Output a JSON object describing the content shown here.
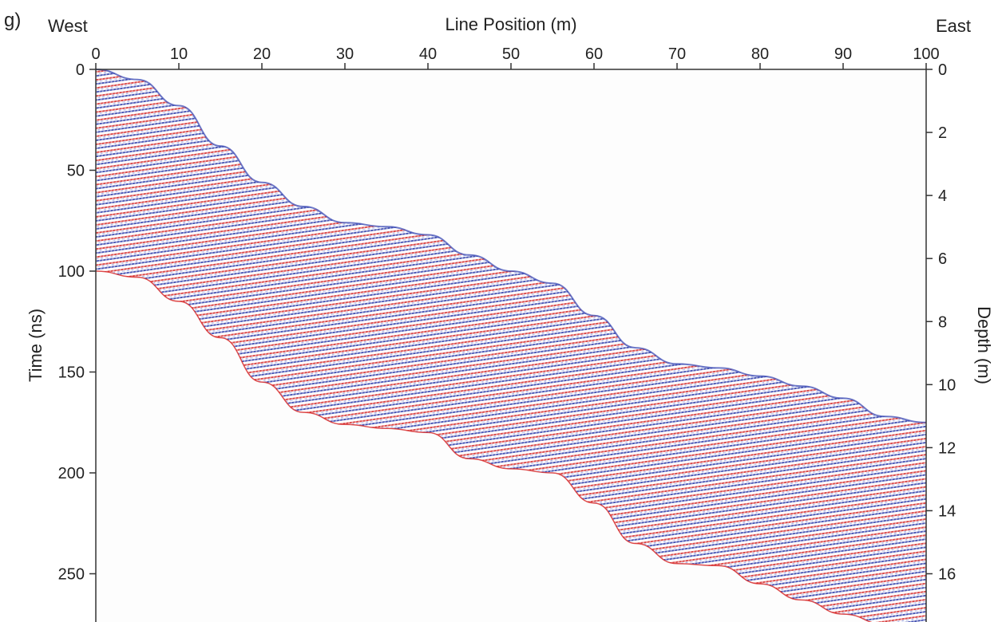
{
  "chart_data": {
    "type": "heatmap",
    "panel_label": "g)",
    "title": "",
    "top_left_label": "West",
    "top_right_label": "East",
    "xlabel": "Line Position (m)",
    "ylabel": "Time (ns)",
    "y2label": "Depth (m)",
    "xlim": [
      0,
      100
    ],
    "ylim": [
      0,
      275
    ],
    "y2lim": [
      0,
      17.6
    ],
    "xticks": [
      "0",
      "10",
      "20",
      "30",
      "40",
      "50",
      "60",
      "70",
      "80",
      "90",
      "100"
    ],
    "yticks": [
      "0",
      "50",
      "100",
      "150",
      "200",
      "250"
    ],
    "y2ticks": [
      "0",
      "2",
      "4",
      "6",
      "8",
      "10",
      "12",
      "14",
      "16"
    ],
    "colormap": {
      "negative": "#1f2fa0",
      "zero": "#ffffff",
      "positive": "#d62020"
    },
    "data_top_surface_ns": {
      "x": [
        0,
        5,
        10,
        15,
        20,
        25,
        30,
        35,
        40,
        45,
        50,
        55,
        60,
        65,
        70,
        75,
        80,
        85,
        90,
        95,
        100
      ],
      "y": [
        0,
        5,
        18,
        38,
        56,
        68,
        76,
        78,
        82,
        92,
        100,
        106,
        122,
        138,
        146,
        148,
        152,
        157,
        163,
        172,
        175
      ]
    },
    "data_bottom_ns": {
      "x": [
        0,
        5,
        10,
        15,
        20,
        25,
        30,
        35,
        40,
        45,
        50,
        55,
        60,
        65,
        70,
        75,
        80,
        85,
        90,
        95,
        100
      ],
      "y": [
        100,
        103,
        115,
        133,
        155,
        170,
        176,
        178,
        180,
        193,
        198,
        200,
        215,
        235,
        245,
        246,
        255,
        263,
        270,
        275,
        275
      ]
    }
  }
}
